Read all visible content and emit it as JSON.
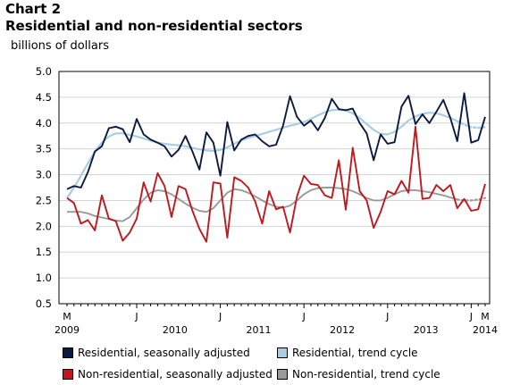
{
  "header": {
    "chart_number": "Chart 2",
    "title": "Residential and non-residential sectors",
    "unit": "billions of dollars"
  },
  "legend": [
    {
      "label": "Residential, seasonally adjusted",
      "color": "#0b1a3f"
    },
    {
      "label": "Residential, trend cycle",
      "color": "#a9cde6"
    },
    {
      "label": "Non-residential, seasonally adjusted",
      "color": "#c0181c"
    },
    {
      "label": "Non-residential, trend cycle",
      "color": "#9a9a9a"
    }
  ],
  "chart_data": {
    "type": "line",
    "title": "Residential and non-residential sectors",
    "ylabel": "billions of dollars",
    "xlabel": "",
    "ylim": [
      0.5,
      5.0
    ],
    "yticks": [
      "0.5",
      "1.0",
      "1.5",
      "2.0",
      "2.5",
      "3.0",
      "3.5",
      "4.0",
      "4.5",
      "5.0"
    ],
    "grid": true,
    "legend_position": "bottom",
    "x": [
      "2009-03",
      "2009-04",
      "2009-05",
      "2009-06",
      "2009-07",
      "2009-08",
      "2009-09",
      "2009-10",
      "2009-11",
      "2009-12",
      "2010-01",
      "2010-02",
      "2010-03",
      "2010-04",
      "2010-05",
      "2010-06",
      "2010-07",
      "2010-08",
      "2010-09",
      "2010-10",
      "2010-11",
      "2010-12",
      "2011-01",
      "2011-02",
      "2011-03",
      "2011-04",
      "2011-05",
      "2011-06",
      "2011-07",
      "2011-08",
      "2011-09",
      "2011-10",
      "2011-11",
      "2011-12",
      "2012-01",
      "2012-02",
      "2012-03",
      "2012-04",
      "2012-05",
      "2012-06",
      "2012-07",
      "2012-08",
      "2012-09",
      "2012-10",
      "2012-11",
      "2012-12",
      "2013-01",
      "2013-02",
      "2013-03",
      "2013-04",
      "2013-05",
      "2013-06",
      "2013-07",
      "2013-08",
      "2013-09",
      "2013-10",
      "2013-11",
      "2013-12",
      "2014-01",
      "2014-02",
      "2014-03"
    ],
    "x_tick_labels": [
      {
        "x": "2009-03",
        "label": "M"
      },
      {
        "x": "2010-01",
        "label": "J"
      },
      {
        "x": "2011-01",
        "label": "J"
      },
      {
        "x": "2012-01",
        "label": "J"
      },
      {
        "x": "2013-01",
        "label": "J"
      },
      {
        "x": "2014-01",
        "label": "J"
      },
      {
        "x": "2014-03",
        "label": "M"
      }
    ],
    "x_year_labels": [
      {
        "x": "2009-03",
        "label": "2009"
      },
      {
        "x": "2010-01",
        "label": "2010"
      },
      {
        "x": "2011-01",
        "label": "2011"
      },
      {
        "x": "2012-01",
        "label": "2012"
      },
      {
        "x": "2013-01",
        "label": "2013"
      },
      {
        "x": "2014-03",
        "label": "2014"
      }
    ],
    "series": [
      {
        "name": "Residential, seasonally adjusted",
        "color": "#0b1a3f",
        "style": "solid",
        "values": [
          2.72,
          2.78,
          2.75,
          3.05,
          3.45,
          3.55,
          3.9,
          3.93,
          3.88,
          3.63,
          4.08,
          3.78,
          3.68,
          3.62,
          3.55,
          3.35,
          3.48,
          3.75,
          3.45,
          3.1,
          3.82,
          3.62,
          2.98,
          4.02,
          3.47,
          3.68,
          3.75,
          3.78,
          3.65,
          3.55,
          3.58,
          3.95,
          4.52,
          4.12,
          3.95,
          4.05,
          3.86,
          4.1,
          4.47,
          4.27,
          4.25,
          4.28,
          4.0,
          3.8,
          3.28,
          3.78,
          3.6,
          3.63,
          4.32,
          4.53,
          3.98,
          4.17,
          4.0,
          4.22,
          4.45,
          4.1,
          3.65,
          4.58,
          3.62,
          3.67,
          4.12
        ]
      },
      {
        "name": "Residential, trend cycle",
        "color": "#a9cde6",
        "style": "solid",
        "values": [
          2.55,
          2.75,
          2.98,
          3.22,
          3.45,
          3.62,
          3.74,
          3.8,
          3.8,
          3.77,
          3.74,
          3.7,
          3.66,
          3.62,
          3.6,
          3.58,
          3.57,
          3.55,
          3.52,
          3.49,
          3.47,
          3.46,
          3.48,
          3.53,
          3.6,
          3.66,
          3.71,
          3.75,
          3.79,
          3.83,
          3.87,
          3.91,
          3.95,
          3.98,
          4.02,
          4.08,
          4.15,
          4.21,
          4.25,
          4.26,
          4.24,
          4.19,
          4.1,
          3.98,
          3.87,
          3.79,
          3.78,
          3.83,
          3.93,
          4.05,
          4.13,
          4.18,
          4.2,
          4.19,
          4.15,
          4.1,
          4.04,
          3.97,
          3.92,
          3.91,
          3.92
        ],
        "dotted_from_index": 56
      },
      {
        "name": "Non-residential, seasonally adjusted",
        "color": "#c0181c",
        "style": "solid",
        "values": [
          2.55,
          2.45,
          2.05,
          2.12,
          1.92,
          2.6,
          2.15,
          2.1,
          1.72,
          1.88,
          2.15,
          2.85,
          2.48,
          3.03,
          2.78,
          2.18,
          2.78,
          2.72,
          2.3,
          1.95,
          1.7,
          2.85,
          2.83,
          1.78,
          2.95,
          2.88,
          2.75,
          2.48,
          2.05,
          2.68,
          2.33,
          2.38,
          1.88,
          2.58,
          2.98,
          2.82,
          2.8,
          2.6,
          2.55,
          3.28,
          2.32,
          3.52,
          2.68,
          2.5,
          1.97,
          2.28,
          2.68,
          2.62,
          2.88,
          2.65,
          3.93,
          2.53,
          2.55,
          2.8,
          2.68,
          2.8,
          2.35,
          2.53,
          2.3,
          2.33,
          2.82
        ]
      },
      {
        "name": "Non-residential, trend cycle",
        "color": "#9a9a9a",
        "style": "solid",
        "values": [
          2.28,
          2.28,
          2.28,
          2.25,
          2.2,
          2.17,
          2.14,
          2.11,
          2.1,
          2.18,
          2.35,
          2.52,
          2.65,
          2.7,
          2.68,
          2.62,
          2.53,
          2.44,
          2.36,
          2.3,
          2.28,
          2.35,
          2.5,
          2.65,
          2.72,
          2.7,
          2.65,
          2.58,
          2.5,
          2.43,
          2.38,
          2.36,
          2.4,
          2.5,
          2.62,
          2.7,
          2.74,
          2.75,
          2.75,
          2.74,
          2.72,
          2.68,
          2.62,
          2.55,
          2.5,
          2.5,
          2.55,
          2.62,
          2.68,
          2.7,
          2.7,
          2.68,
          2.66,
          2.63,
          2.6,
          2.56,
          2.52,
          2.5,
          2.5,
          2.52,
          2.55
        ],
        "dotted_from_index": 56
      }
    ]
  }
}
